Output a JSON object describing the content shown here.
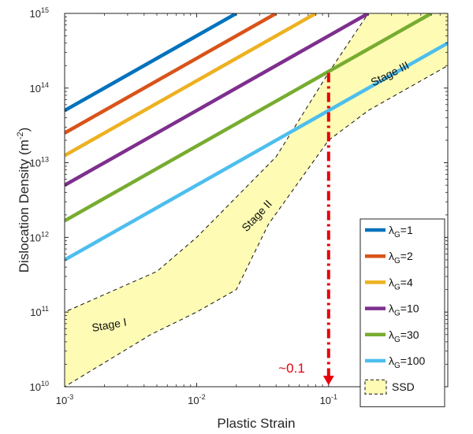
{
  "chart_data": {
    "type": "line",
    "xscale": "log",
    "yscale": "log",
    "xlabel": "Plastic Strain",
    "ylabel_main": "Dislocation Density (m",
    "ylabel_sup": "-2",
    "ylabel_close": ")",
    "xlim": [
      0.001,
      0.8
    ],
    "ylim": [
      10000000000.0,
      1000000000000000.0
    ],
    "xticks": [
      {
        "value": 0.001,
        "base": "10",
        "exp": "-3"
      },
      {
        "value": 0.01,
        "base": "10",
        "exp": "-2"
      },
      {
        "value": 0.1,
        "base": "10",
        "exp": "-1"
      }
    ],
    "yticks": [
      {
        "value": 10000000000.0,
        "base": "10",
        "exp": "10"
      },
      {
        "value": 100000000000.0,
        "base": "10",
        "exp": "11"
      },
      {
        "value": 1000000000000.0,
        "base": "10",
        "exp": "12"
      },
      {
        "value": 10000000000000.0,
        "base": "10",
        "exp": "13"
      },
      {
        "value": 100000000000000.0,
        "base": "10",
        "exp": "14"
      },
      {
        "value": 1000000000000000.0,
        "base": "10",
        "exp": "15"
      }
    ],
    "series": [
      {
        "name": "λG=1",
        "sym": "λ",
        "sub": "G",
        "eq": "=1",
        "color": "#0072BD",
        "x": [
          0.001,
          0.02
        ],
        "y": [
          50000000000000.0,
          1000000000000000.0
        ]
      },
      {
        "name": "λG=2",
        "sym": "λ",
        "sub": "G",
        "eq": "=2",
        "color": "#D95319",
        "x": [
          0.001,
          0.04
        ],
        "y": [
          25000000000000.0,
          1000000000000000.0
        ]
      },
      {
        "name": "λG=4",
        "sym": "λ",
        "sub": "G",
        "eq": "=4",
        "color": "#EDB120",
        "x": [
          0.001,
          0.08
        ],
        "y": [
          12500000000000.0,
          1000000000000000.0
        ]
      },
      {
        "name": "λG=10",
        "sym": "λ",
        "sub": "G",
        "eq": "=10",
        "color": "#7E2F8E",
        "x": [
          0.001,
          0.2
        ],
        "y": [
          5000000000000.0,
          1000000000000000.0
        ]
      },
      {
        "name": "λG=30",
        "sym": "λ",
        "sub": "G",
        "eq": "=30",
        "color": "#77AC30",
        "x": [
          0.001,
          0.6
        ],
        "y": [
          1670000000000.0,
          1000000000000000.0
        ]
      },
      {
        "name": "λG=100",
        "sym": "λ",
        "sub": "G",
        "eq": "=100",
        "color": "#4DBEEE",
        "x": [
          0.001,
          0.8
        ],
        "y": [
          500000000000.0,
          400000000000000.0
        ]
      }
    ],
    "ssd_region": {
      "name": "SSD",
      "color": "#FDFBB4",
      "x": [
        0.001,
        0.001,
        0.005,
        0.01,
        0.04,
        0.1,
        0.2,
        0.8,
        0.8,
        0.2,
        0.1,
        0.035,
        0.02,
        0.01,
        0.0045,
        0.001
      ],
      "y": [
        10000000000.0,
        100000000000.0,
        350000000000.0,
        1000000000000.0,
        12000000000000.0,
        160000000000000.0,
        1000000000000000.0,
        1000000000000000.0,
        200000000000000.0,
        50000000000000.0,
        20000000000000.0,
        1500000000000.0,
        200000000000.0,
        100000000000.0,
        50000000000.0,
        10000000000.0
      ]
    },
    "stages": [
      {
        "label": "Stage I",
        "x": 0.0022,
        "y": 60000000000.0,
        "angle": -10
      },
      {
        "label": "Stage II",
        "x": 0.03,
        "y": 1800000000000.0,
        "angle": -47
      },
      {
        "label": "Stage III",
        "x": 0.3,
        "y": 140000000000000.0,
        "angle": -27
      }
    ],
    "annotation": {
      "text": "~0.1",
      "x": 0.1,
      "y_top": 160000000000000.0,
      "y_bottom": 10000000000.0,
      "color": "#E8000D"
    },
    "legend_position": "bottom-right"
  }
}
